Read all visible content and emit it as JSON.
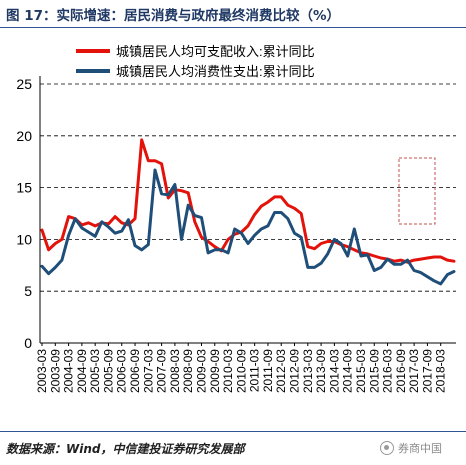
{
  "header": {
    "title": "图 17：实际增速：居民消费与政府最终消费比较（%）"
  },
  "footer": {
    "source": "数据来源：Wind，中信建投证券研究发展部",
    "watermark": "券商中国"
  },
  "colors": {
    "series_income": "#e3120b",
    "series_consumption": "#1f4e79",
    "title": "#1f3864",
    "annotation_box": "#c0504d"
  },
  "chart_data": {
    "type": "line",
    "title": "",
    "xlabel": "",
    "ylabel": "",
    "ylim": [
      0,
      25
    ],
    "yticks": [
      0,
      5,
      10,
      15,
      20,
      25
    ],
    "grid": "horizontal dashed",
    "legend": "top",
    "x_tick_labels": [
      "2003-03",
      "2003-09",
      "2004-03",
      "2004-09",
      "2005-03",
      "2005-09",
      "2006-03",
      "2006-09",
      "2007-03",
      "2007-09",
      "2008-03",
      "2008-09",
      "2009-03",
      "2009-09",
      "2010-03",
      "2010-09",
      "2011-03",
      "2011-09",
      "2012-03",
      "2012-09",
      "2013-03",
      "2013-09",
      "2014-03",
      "2014-09",
      "2015-03",
      "2015-09",
      "2016-03",
      "2016-09",
      "2017-03",
      "2017-09",
      "2018-03"
    ],
    "x": [
      "2003-03",
      "2003-06",
      "2003-09",
      "2003-12",
      "2004-03",
      "2004-06",
      "2004-09",
      "2004-12",
      "2005-03",
      "2005-06",
      "2005-09",
      "2005-12",
      "2006-03",
      "2006-06",
      "2006-09",
      "2006-12",
      "2007-03",
      "2007-06",
      "2007-09",
      "2007-12",
      "2008-03",
      "2008-06",
      "2008-09",
      "2008-12",
      "2009-03",
      "2009-06",
      "2009-09",
      "2009-12",
      "2010-03",
      "2010-06",
      "2010-09",
      "2010-12",
      "2011-03",
      "2011-06",
      "2011-09",
      "2011-12",
      "2012-03",
      "2012-06",
      "2012-09",
      "2012-12",
      "2013-03",
      "2013-06",
      "2013-09",
      "2013-12",
      "2014-03",
      "2014-06",
      "2014-09",
      "2014-12",
      "2015-03",
      "2015-06",
      "2015-09",
      "2015-12",
      "2016-03",
      "2016-06",
      "2016-09",
      "2016-12",
      "2017-03",
      "2017-06",
      "2017-09",
      "2017-12",
      "2018-03",
      "2018-06",
      "2018-09"
    ],
    "series": [
      {
        "name": "城镇居民人均可支配收入:累计同比",
        "color": "#e3120b",
        "values": [
          10.9,
          9.0,
          9.6,
          10.0,
          12.2,
          12.0,
          11.4,
          11.6,
          11.3,
          11.6,
          11.5,
          12.2,
          11.6,
          11.4,
          12.0,
          19.6,
          17.6,
          17.6,
          17.3,
          14.0,
          14.8,
          14.7,
          14.5,
          11.7,
          10.2,
          9.8,
          9.3,
          8.9,
          10.0,
          10.5,
          10.7,
          11.3,
          12.4,
          13.2,
          13.6,
          14.1,
          14.1,
          13.3,
          13.0,
          12.5,
          9.3,
          9.1,
          9.6,
          9.8,
          9.8,
          9.5,
          9.3,
          9.0,
          8.7,
          8.6,
          8.4,
          8.2,
          8.1,
          7.9,
          8.0,
          7.8,
          8.0,
          8.1,
          8.2,
          8.3,
          8.3,
          8.0,
          7.9
        ]
      },
      {
        "name": "城镇居民人均消费性支出:累计同比",
        "color": "#1f4e79",
        "values": [
          7.4,
          6.7,
          7.3,
          8.0,
          10.4,
          12.0,
          11.1,
          10.7,
          10.3,
          11.7,
          11.2,
          10.6,
          10.8,
          11.9,
          9.4,
          9.0,
          9.5,
          16.7,
          14.4,
          14.3,
          15.3,
          10.0,
          13.3,
          12.3,
          12.1,
          8.7,
          9.0,
          9.0,
          8.7,
          11.0,
          10.6,
          9.6,
          10.4,
          11.0,
          11.3,
          12.6,
          12.6,
          12.0,
          10.6,
          10.2,
          7.3,
          7.3,
          7.7,
          8.6,
          10.0,
          9.6,
          8.4,
          11.0,
          8.4,
          8.5,
          7.0,
          7.3,
          8.1,
          7.6,
          7.6,
          8.0,
          7.0,
          6.8,
          6.4,
          6.0,
          5.7,
          6.6,
          6.9
        ]
      }
    ]
  }
}
